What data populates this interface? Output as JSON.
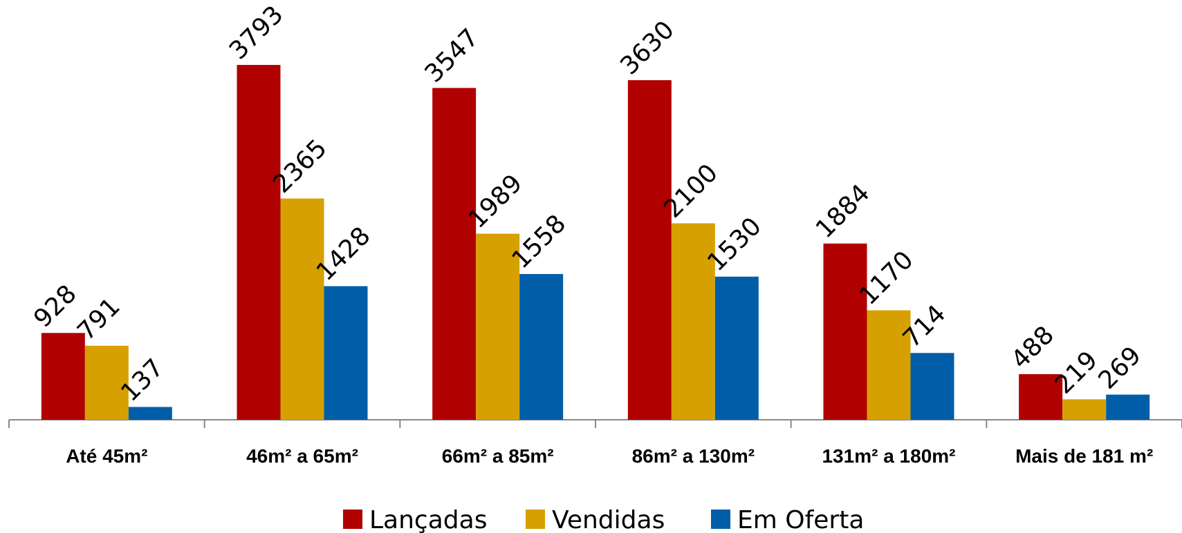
{
  "chart_data": {
    "type": "bar",
    "categories": [
      "Até 45m²",
      "46m² a 65m²",
      "66m² a 85m²",
      "86m² a 130m²",
      "131m² a 180m²",
      "Mais de 181 m²"
    ],
    "series": [
      {
        "name": "Lançadas",
        "color": "#b00000",
        "values": [
          928,
          3793,
          3547,
          3630,
          1884,
          488
        ]
      },
      {
        "name": "Vendidas",
        "color": "#d6a000",
        "values": [
          791,
          2365,
          1989,
          2100,
          1170,
          219
        ]
      },
      {
        "name": "Em Oferta",
        "color": "#005ea8",
        "values": [
          137,
          1428,
          1558,
          1530,
          714,
          269
        ]
      }
    ],
    "ylim": [
      0,
      4000
    ]
  }
}
